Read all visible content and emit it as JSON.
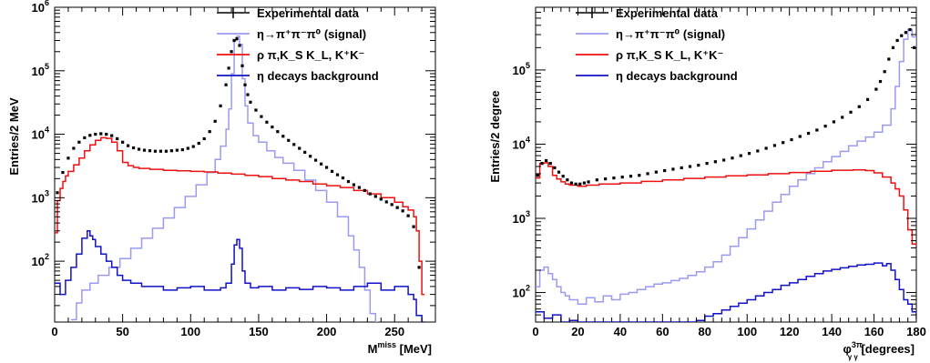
{
  "colors": {
    "data": "#000000",
    "signal": "#9a9af2",
    "bkg": "#ee1111",
    "eta": "#1212c8"
  },
  "chart_data": [
    {
      "type": "line",
      "xlabel_main": "M",
      "xlabel_sup": "miss",
      "xlabel_unit": " [MeV]",
      "ylabel": "Entries/2 MeV",
      "log_y": true,
      "xlim": [
        0,
        280
      ],
      "ylim": [
        11,
        1000000
      ],
      "x_ticks": [
        0,
        50,
        100,
        150,
        200,
        250
      ],
      "y_ticks": [
        {
          "value": 100,
          "base": "10",
          "exp": "2"
        },
        {
          "value": 1000,
          "base": "10",
          "exp": "3"
        },
        {
          "value": 10000,
          "base": "10",
          "exp": "4"
        },
        {
          "value": 100000,
          "base": "10",
          "exp": "5"
        },
        {
          "value": 1000000,
          "base": "10",
          "exp": "6"
        }
      ],
      "legend_position": "top-right",
      "legend": [
        {
          "key": "data",
          "label": "Experimental data",
          "color": "#000000"
        },
        {
          "key": "signal",
          "label": "η→π⁺π⁻π⁰ (signal)",
          "color": "#9a9af2"
        },
        {
          "key": "bkg",
          "label": "ρ π,K_S K_L, K⁺K⁻",
          "color": "#ee1111"
        },
        {
          "key": "eta",
          "label": "η decays background",
          "color": "#1212c8"
        }
      ],
      "series": [
        {
          "key": "data",
          "style": "points",
          "x": [
            2,
            6,
            10,
            14,
            18,
            22,
            26,
            30,
            34,
            38,
            42,
            46,
            50,
            54,
            58,
            62,
            66,
            70,
            74,
            78,
            82,
            86,
            90,
            94,
            98,
            102,
            106,
            110,
            114,
            118,
            122,
            126,
            128,
            130,
            132,
            134,
            136,
            138,
            140,
            142,
            144,
            148,
            152,
            156,
            160,
            164,
            168,
            172,
            176,
            180,
            184,
            188,
            192,
            196,
            200,
            204,
            208,
            212,
            216,
            220,
            224,
            228,
            232,
            236,
            240,
            244,
            248,
            252,
            256,
            260,
            264,
            268
          ],
          "y": [
            1200,
            2500,
            4200,
            6000,
            7500,
            8800,
            9600,
            10000,
            10200,
            10000,
            9500,
            8500,
            7500,
            6600,
            6100,
            5800,
            5600,
            5500,
            5400,
            5400,
            5400,
            5500,
            5600,
            5700,
            6000,
            6400,
            7200,
            8500,
            11000,
            16000,
            28000,
            60000,
            110000,
            200000,
            300000,
            320000,
            250000,
            120000,
            60000,
            42000,
            32000,
            24000,
            19000,
            15500,
            13000,
            11000,
            9300,
            8000,
            6900,
            6000,
            5200,
            4500,
            3900,
            3400,
            3000,
            2600,
            2300,
            2050,
            1800,
            1600,
            1450,
            1300,
            1150,
            1050,
            950,
            860,
            780,
            700,
            620,
            520,
            350,
            80
          ]
        },
        {
          "key": "signal",
          "style": "step",
          "x": [
            12,
            16,
            20,
            26,
            32,
            40,
            48,
            56,
            64,
            72,
            80,
            88,
            96,
            104,
            112,
            118,
            122,
            126,
            128,
            130,
            132,
            134,
            136,
            138,
            140,
            142,
            146,
            150,
            156,
            162,
            168,
            176,
            184,
            192,
            200,
            208,
            216,
            220,
            224,
            228,
            232,
            236
          ],
          "y": [
            12,
            22,
            35,
            45,
            60,
            80,
            110,
            160,
            230,
            330,
            480,
            700,
            1050,
            1600,
            2500,
            4000,
            6500,
            12000,
            25000,
            90000,
            300000,
            350000,
            260000,
            75000,
            28000,
            15000,
            9500,
            7500,
            5500,
            4300,
            3500,
            2700,
            1900,
            1300,
            850,
            500,
            250,
            150,
            80,
            35,
            15,
            11
          ]
        },
        {
          "key": "bkg",
          "style": "step",
          "x": [
            0,
            2,
            4,
            6,
            8,
            10,
            14,
            18,
            22,
            26,
            30,
            34,
            38,
            42,
            46,
            50,
            54,
            58,
            62,
            70,
            80,
            90,
            100,
            110,
            120,
            130,
            140,
            150,
            160,
            170,
            180,
            190,
            200,
            210,
            220,
            230,
            240,
            250,
            256,
            260,
            264,
            266,
            268,
            270
          ],
          "y": [
            280,
            900,
            1400,
            1800,
            2200,
            2600,
            3300,
            4200,
            5500,
            6800,
            8000,
            8800,
            8600,
            7500,
            5500,
            3600,
            3200,
            3000,
            2900,
            2800,
            2700,
            2650,
            2600,
            2550,
            2450,
            2350,
            2250,
            2150,
            2000,
            1900,
            1800,
            1650,
            1550,
            1450,
            1300,
            1150,
            1000,
            850,
            720,
            640,
            500,
            300,
            100,
            30
          ]
        },
        {
          "key": "eta",
          "style": "step",
          "x": [
            0,
            4,
            8,
            12,
            16,
            20,
            24,
            26,
            28,
            30,
            34,
            38,
            42,
            46,
            50,
            56,
            64,
            72,
            80,
            90,
            100,
            110,
            118,
            122,
            126,
            130,
            132,
            134,
            136,
            138,
            140,
            144,
            150,
            160,
            170,
            180,
            190,
            200,
            210,
            220,
            230,
            240,
            250,
            260,
            264,
            266,
            270
          ],
          "y": [
            45,
            30,
            50,
            80,
            130,
            230,
            300,
            250,
            220,
            170,
            130,
            100,
            80,
            60,
            50,
            45,
            40,
            40,
            35,
            38,
            40,
            35,
            35,
            38,
            45,
            90,
            180,
            220,
            160,
            70,
            45,
            38,
            40,
            35,
            38,
            36,
            40,
            38,
            35,
            40,
            45,
            35,
            40,
            30,
            25,
            14,
            11
          ]
        }
      ]
    },
    {
      "type": "line",
      "xlabel_main": "φ",
      "xlabel_sup": "3π",
      "xlabel_sub": "γ γ",
      "xlabel_unit": " [degrees]",
      "ylabel": "Entries/2 degree",
      "log_y": true,
      "xlim": [
        0,
        180
      ],
      "ylim": [
        40,
        700000
      ],
      "x_ticks": [
        0,
        20,
        40,
        60,
        80,
        100,
        120,
        140,
        160,
        180
      ],
      "y_ticks": [
        {
          "value": 100,
          "base": "10",
          "exp": "2"
        },
        {
          "value": 1000,
          "base": "10",
          "exp": "3"
        },
        {
          "value": 10000,
          "base": "10",
          "exp": "4"
        },
        {
          "value": 100000,
          "base": "10",
          "exp": "5"
        }
      ],
      "legend_position": "top-right",
      "legend": [
        {
          "key": "data",
          "label": "Experimental data",
          "color": "#000000"
        },
        {
          "key": "signal",
          "label": "η→π⁺π⁻π⁰ (signal)",
          "color": "#9a9af2"
        },
        {
          "key": "bkg",
          "label": "ρ π,K_S K_L, K⁺K⁻",
          "color": "#ee1111"
        },
        {
          "key": "eta",
          "label": "η decays background",
          "color": "#1212c8"
        }
      ],
      "series": [
        {
          "key": "data",
          "style": "points",
          "x": [
            1,
            3,
            5,
            7,
            9,
            11,
            13,
            15,
            17,
            19,
            21,
            23,
            25,
            29,
            33,
            37,
            41,
            45,
            49,
            53,
            57,
            61,
            65,
            69,
            73,
            77,
            81,
            85,
            89,
            93,
            97,
            101,
            105,
            109,
            113,
            117,
            121,
            125,
            129,
            133,
            137,
            141,
            145,
            149,
            153,
            157,
            161,
            163,
            165,
            167,
            169,
            171,
            173,
            175,
            177,
            179
          ],
          "y": [
            3800,
            5500,
            6000,
            5500,
            4800,
            4200,
            3700,
            3300,
            3000,
            2900,
            2900,
            3000,
            3100,
            3300,
            3400,
            3500,
            3600,
            3700,
            3800,
            4000,
            4200,
            4400,
            4600,
            4800,
            5000,
            5200,
            5500,
            5800,
            6100,
            6500,
            7000,
            7500,
            8100,
            8800,
            9600,
            10500,
            11500,
            12700,
            14000,
            15500,
            17500,
            20000,
            23000,
            27000,
            32000,
            40000,
            55000,
            70000,
            95000,
            140000,
            200000,
            250000,
            290000,
            320000,
            350000,
            200000
          ]
        },
        {
          "key": "signal",
          "style": "step",
          "x": [
            0,
            2,
            4,
            6,
            8,
            10,
            12,
            14,
            16,
            20,
            24,
            28,
            32,
            36,
            40,
            44,
            48,
            52,
            56,
            60,
            64,
            68,
            72,
            76,
            80,
            84,
            88,
            92,
            96,
            100,
            104,
            108,
            112,
            116,
            120,
            124,
            128,
            132,
            136,
            140,
            144,
            148,
            152,
            156,
            160,
            164,
            168,
            170,
            172,
            174,
            176,
            178,
            180
          ],
          "y": [
            120,
            200,
            220,
            180,
            150,
            120,
            100,
            90,
            80,
            70,
            85,
            75,
            90,
            80,
            95,
            100,
            110,
            120,
            130,
            135,
            145,
            155,
            170,
            190,
            220,
            260,
            320,
            420,
            550,
            720,
            950,
            1250,
            1650,
            2100,
            2700,
            3300,
            4000,
            4800,
            5800,
            6800,
            8000,
            9500,
            11000,
            12500,
            14500,
            18000,
            30000,
            60000,
            130000,
            260000,
            350000,
            280000,
            200000
          ]
        },
        {
          "key": "bkg",
          "style": "step",
          "x": [
            0,
            2,
            4,
            6,
            8,
            10,
            12,
            14,
            16,
            18,
            20,
            24,
            30,
            40,
            50,
            60,
            70,
            80,
            90,
            100,
            110,
            120,
            130,
            140,
            150,
            156,
            160,
            164,
            168,
            170,
            172,
            174,
            176,
            178,
            180
          ],
          "y": [
            3500,
            5500,
            5600,
            5000,
            3800,
            3400,
            3100,
            2900,
            2800,
            2800,
            2700,
            2800,
            2900,
            3000,
            3150,
            3300,
            3450,
            3600,
            3750,
            3850,
            4000,
            4150,
            4300,
            4450,
            4500,
            4400,
            4100,
            3600,
            3000,
            2500,
            2000,
            1300,
            700,
            450,
            400
          ]
        },
        {
          "key": "eta",
          "style": "step",
          "x": [
            0,
            4,
            8,
            12,
            16,
            20,
            40,
            60,
            70,
            76,
            80,
            84,
            88,
            92,
            96,
            100,
            104,
            108,
            112,
            116,
            120,
            124,
            128,
            132,
            136,
            140,
            144,
            148,
            152,
            156,
            160,
            164,
            166,
            168,
            170,
            172,
            174,
            176,
            178,
            180
          ],
          "y": [
            55,
            45,
            50,
            40,
            42,
            40,
            38,
            40,
            38,
            42,
            48,
            52,
            58,
            65,
            72,
            80,
            90,
            100,
            110,
            125,
            135,
            150,
            165,
            180,
            195,
            205,
            215,
            225,
            235,
            240,
            250,
            230,
            245,
            200,
            150,
            110,
            80,
            70,
            55,
            45
          ]
        }
      ]
    }
  ]
}
